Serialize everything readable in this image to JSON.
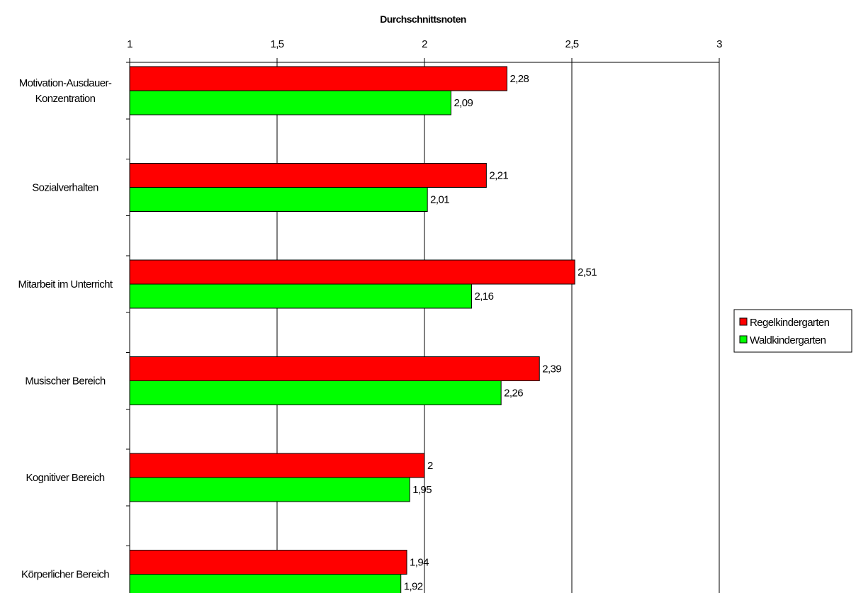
{
  "chart_data": {
    "type": "bar",
    "orientation": "horizontal",
    "title": "Durchschnittsnoten",
    "categories": [
      "Motivation-Ausdauer-Konzentration",
      "Sozialverhalten",
      "Mitarbeit im Unterricht",
      "Musischer Bereich",
      "Kognitiver Bereich",
      "Körperlicher Bereich"
    ],
    "category_lines": [
      [
        "Motivation-Ausdauer-",
        "Konzentration"
      ],
      [
        "Sozialverhalten"
      ],
      [
        "Mitarbeit im Unterricht"
      ],
      [
        "Musischer Bereich"
      ],
      [
        "Kognitiver Bereich"
      ],
      [
        "Körperlicher Bereich"
      ]
    ],
    "series": [
      {
        "name": "Regelkindergarten",
        "color": "#ff0000",
        "values": [
          2.28,
          2.21,
          2.51,
          2.39,
          2,
          1.94
        ],
        "labels": [
          "2,28",
          "2,21",
          "2,51",
          "2,39",
          "2",
          "1,94"
        ]
      },
      {
        "name": "Waldkindergarten",
        "color": "#00ff00",
        "values": [
          2.09,
          2.01,
          2.16,
          2.26,
          1.95,
          1.92
        ],
        "labels": [
          "2,09",
          "2,01",
          "2,16",
          "2,26",
          "1,95",
          "1,92"
        ]
      }
    ],
    "xlim": [
      1,
      3
    ],
    "xticks": [
      1,
      1.5,
      2,
      2.5,
      3
    ],
    "xtick_labels": [
      "1",
      "1,5",
      "2",
      "2,5",
      "3"
    ],
    "axis_position": "top",
    "grid": true,
    "legend_position": "right"
  }
}
